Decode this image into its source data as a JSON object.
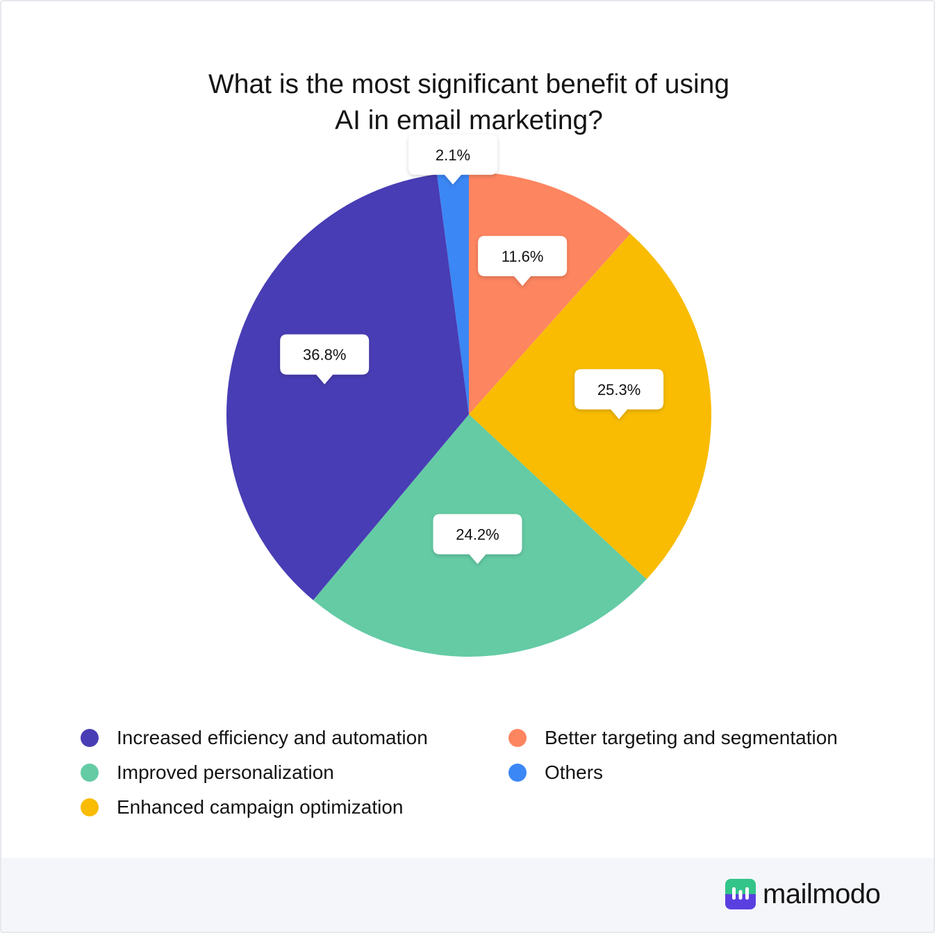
{
  "chart_data": {
    "type": "pie",
    "title_lines": [
      "What is the most significant benefit of using",
      "AI in email marketing?"
    ],
    "slices": [
      {
        "name": "Better targeting and segmentation",
        "value": 11.6,
        "label": "11.6%",
        "color": "#fd8560"
      },
      {
        "name": "Enhanced campaign optimization",
        "value": 25.3,
        "label": "25.3%",
        "color": "#f9bc02"
      },
      {
        "name": "Improved personalization",
        "value": 24.2,
        "label": "24.2%",
        "color": "#64cba5"
      },
      {
        "name": "Increased efficiency and automation",
        "value": 36.8,
        "label": "36.8%",
        "color": "#483db4"
      },
      {
        "name": "Others",
        "value": 2.1,
        "label": "2.1%",
        "color": "#3b87f5"
      }
    ],
    "legend": [
      {
        "name": "Increased efficiency and automation",
        "color": "#483db4"
      },
      {
        "name": "Better targeting and segmentation",
        "color": "#fd8560"
      },
      {
        "name": "Improved personalization",
        "color": "#64cba5"
      },
      {
        "name": "Others",
        "color": "#3b87f5"
      },
      {
        "name": "Enhanced campaign optimization",
        "color": "#f9bc02"
      }
    ],
    "legend_placement": "bottom"
  },
  "brand": {
    "name": "mailmodo",
    "mark_colors": [
      "#33c48a",
      "#5a3fe0"
    ]
  }
}
